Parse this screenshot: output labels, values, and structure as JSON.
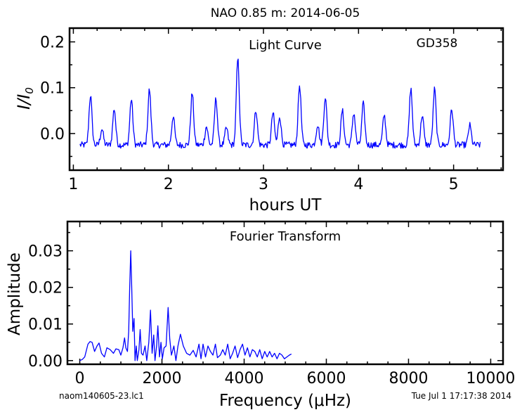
{
  "figure": {
    "title": "NAO 0.85 m:  2014-06-05",
    "footer_left": "naom140605-23.lc1",
    "footer_right": "Tue Jul  1 17:17:38 2014"
  },
  "chart_data": [
    {
      "type": "line",
      "title": "Light Curve",
      "annotation": "GD358",
      "xlabel": "hours UT",
      "ylabel": "I/I0",
      "xlim": [
        0.96,
        5.52
      ],
      "ylim": [
        -0.08,
        0.23
      ],
      "xticks": [
        1,
        2,
        3,
        4,
        5
      ],
      "yticks": [
        0.0,
        0.1,
        0.2
      ],
      "xtick_labels": [
        "1",
        "2",
        "3",
        "4",
        "5"
      ],
      "ytick_labels": [
        "0.0",
        "0.1",
        "0.2"
      ],
      "color": "#0000ff",
      "grid": false,
      "peaks": [
        {
          "x": 1.18,
          "y": 0.083
        },
        {
          "x": 1.3,
          "y": 0.01
        },
        {
          "x": 1.43,
          "y": 0.054
        },
        {
          "x": 1.61,
          "y": 0.075
        },
        {
          "x": 1.8,
          "y": 0.096
        },
        {
          "x": 2.05,
          "y": 0.038
        },
        {
          "x": 2.25,
          "y": 0.087
        },
        {
          "x": 2.4,
          "y": 0.015
        },
        {
          "x": 2.5,
          "y": 0.076
        },
        {
          "x": 2.61,
          "y": 0.012
        },
        {
          "x": 2.73,
          "y": 0.162
        },
        {
          "x": 2.92,
          "y": 0.052
        },
        {
          "x": 3.1,
          "y": 0.045
        },
        {
          "x": 3.17,
          "y": 0.038
        },
        {
          "x": 3.38,
          "y": 0.105
        },
        {
          "x": 3.57,
          "y": 0.02
        },
        {
          "x": 3.65,
          "y": 0.08
        },
        {
          "x": 3.83,
          "y": 0.05
        },
        {
          "x": 3.95,
          "y": 0.045
        },
        {
          "x": 4.05,
          "y": 0.065
        },
        {
          "x": 4.27,
          "y": 0.04
        },
        {
          "x": 4.55,
          "y": 0.098
        },
        {
          "x": 4.67,
          "y": 0.04
        },
        {
          "x": 4.8,
          "y": 0.097
        },
        {
          "x": 4.98,
          "y": 0.053
        },
        {
          "x": 5.17,
          "y": 0.018
        }
      ],
      "baseline": -0.025,
      "x_range_data": [
        1.07,
        5.28
      ]
    },
    {
      "type": "line",
      "title": "Fourier Transform",
      "xlabel": "Frequency (μHz)",
      "ylabel": "Amplitude",
      "xlim": [
        -300,
        10300
      ],
      "ylim": [
        -0.001,
        0.038
      ],
      "xticks": [
        0,
        2000,
        4000,
        6000,
        8000,
        10000
      ],
      "yticks": [
        0.0,
        0.01,
        0.02,
        0.03
      ],
      "xtick_labels": [
        "0",
        "2000",
        "4000",
        "6000",
        "8000",
        "10000"
      ],
      "ytick_labels": [
        "0.00",
        "0.01",
        "0.02",
        "0.03"
      ],
      "color": "#0000ff",
      "grid": false,
      "points": [
        [
          0,
          0.0
        ],
        [
          60,
          0.0003
        ],
        [
          120,
          0.001
        ],
        [
          200,
          0.0045
        ],
        [
          250,
          0.0052
        ],
        [
          300,
          0.005
        ],
        [
          360,
          0.0025
        ],
        [
          420,
          0.004
        ],
        [
          470,
          0.0048
        ],
        [
          530,
          0.002
        ],
        [
          600,
          0.001
        ],
        [
          660,
          0.0035
        ],
        [
          740,
          0.003
        ],
        [
          820,
          0.002
        ],
        [
          880,
          0.0032
        ],
        [
          950,
          0.003
        ],
        [
          1000,
          0.0015
        ],
        [
          1050,
          0.0035
        ],
        [
          1090,
          0.0062
        ],
        [
          1120,
          0.0035
        ],
        [
          1160,
          0.0025
        ],
        [
          1190,
          0.008
        ],
        [
          1215,
          0.02
        ],
        [
          1240,
          0.03
        ],
        [
          1265,
          0.02
        ],
        [
          1290,
          0.008
        ],
        [
          1320,
          0.0115
        ],
        [
          1345,
          0.0
        ],
        [
          1375,
          0.004
        ],
        [
          1400,
          0.0
        ],
        [
          1440,
          0.003
        ],
        [
          1470,
          0.0085
        ],
        [
          1500,
          0.002
        ],
        [
          1540,
          0.0015
        ],
        [
          1590,
          0.004
        ],
        [
          1630,
          0.0
        ],
        [
          1680,
          0.005
        ],
        [
          1720,
          0.0138
        ],
        [
          1760,
          0.002
        ],
        [
          1800,
          0.007
        ],
        [
          1830,
          0.0
        ],
        [
          1870,
          0.004
        ],
        [
          1900,
          0.0095
        ],
        [
          1940,
          0.001
        ],
        [
          1975,
          0.005
        ],
        [
          2010,
          0.0005
        ],
        [
          2050,
          0.0035
        ],
        [
          2100,
          0.004
        ],
        [
          2150,
          0.0145
        ],
        [
          2190,
          0.006
        ],
        [
          2230,
          0.0015
        ],
        [
          2290,
          0.004
        ],
        [
          2340,
          0.0
        ],
        [
          2390,
          0.004
        ],
        [
          2450,
          0.0072
        ],
        [
          2520,
          0.004
        ],
        [
          2600,
          0.002
        ],
        [
          2680,
          0.0015
        ],
        [
          2760,
          0.0028
        ],
        [
          2830,
          0.001
        ],
        [
          2900,
          0.0045
        ],
        [
          2950,
          0.0005
        ],
        [
          3000,
          0.0045
        ],
        [
          3060,
          0.001
        ],
        [
          3120,
          0.004
        ],
        [
          3180,
          0.0025
        ],
        [
          3240,
          0.0015
        ],
        [
          3300,
          0.0045
        ],
        [
          3350,
          0.0008
        ],
        [
          3420,
          0.0015
        ],
        [
          3480,
          0.003
        ],
        [
          3540,
          0.0015
        ],
        [
          3600,
          0.0045
        ],
        [
          3660,
          0.0005
        ],
        [
          3720,
          0.002
        ],
        [
          3780,
          0.004
        ],
        [
          3840,
          0.0008
        ],
        [
          3900,
          0.003
        ],
        [
          3960,
          0.0045
        ],
        [
          4020,
          0.0015
        ],
        [
          4080,
          0.0035
        ],
        [
          4140,
          0.001
        ],
        [
          4200,
          0.003
        ],
        [
          4260,
          0.0025
        ],
        [
          4320,
          0.001
        ],
        [
          4380,
          0.003
        ],
        [
          4440,
          0.0005
        ],
        [
          4500,
          0.0025
        ],
        [
          4560,
          0.001
        ],
        [
          4620,
          0.0025
        ],
        [
          4680,
          0.001
        ],
        [
          4740,
          0.002
        ],
        [
          4800,
          0.0005
        ],
        [
          4860,
          0.002
        ],
        [
          4920,
          0.0015
        ],
        [
          4980,
          0.0005
        ],
        [
          5040,
          0.001
        ],
        [
          5100,
          0.0015
        ],
        [
          5150,
          0.0018
        ]
      ]
    }
  ]
}
